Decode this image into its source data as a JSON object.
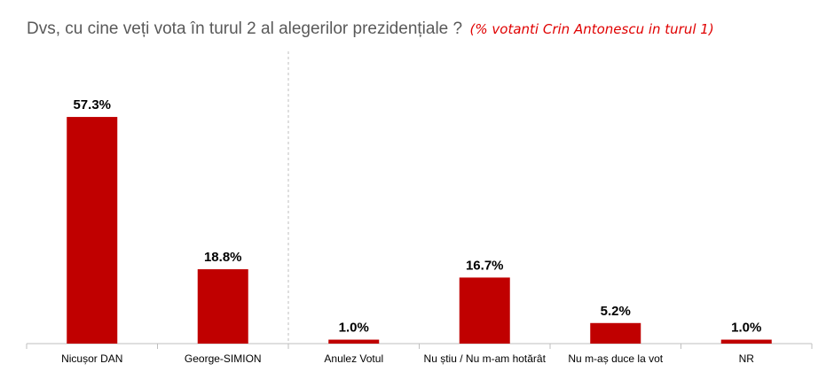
{
  "title": "Dvs, cu cine veți vota în turul 2 al alegerilor prezidențiale ?",
  "subtitle": "(% votanti Crin Antonescu in turul 1)",
  "colors": {
    "bar": "#c00000",
    "title": "#595959",
    "subtitle": "#e00000",
    "axis": "#bfbfbf"
  },
  "chart_data": {
    "type": "bar",
    "categories": [
      "Nicușor DAN",
      "George-SIMION",
      "Anulez Votul",
      "Nu știu / Nu m-am hotărât",
      "Nu m-aș duce la vot",
      "NR"
    ],
    "values": [
      57.3,
      18.8,
      1.0,
      16.7,
      5.2,
      1.0
    ],
    "value_labels": [
      "57.3%",
      "18.8%",
      "1.0%",
      "16.7%",
      "5.2%",
      "1.0%"
    ],
    "ylim": [
      0,
      60
    ],
    "grid": false,
    "divider_after_index": 1
  }
}
